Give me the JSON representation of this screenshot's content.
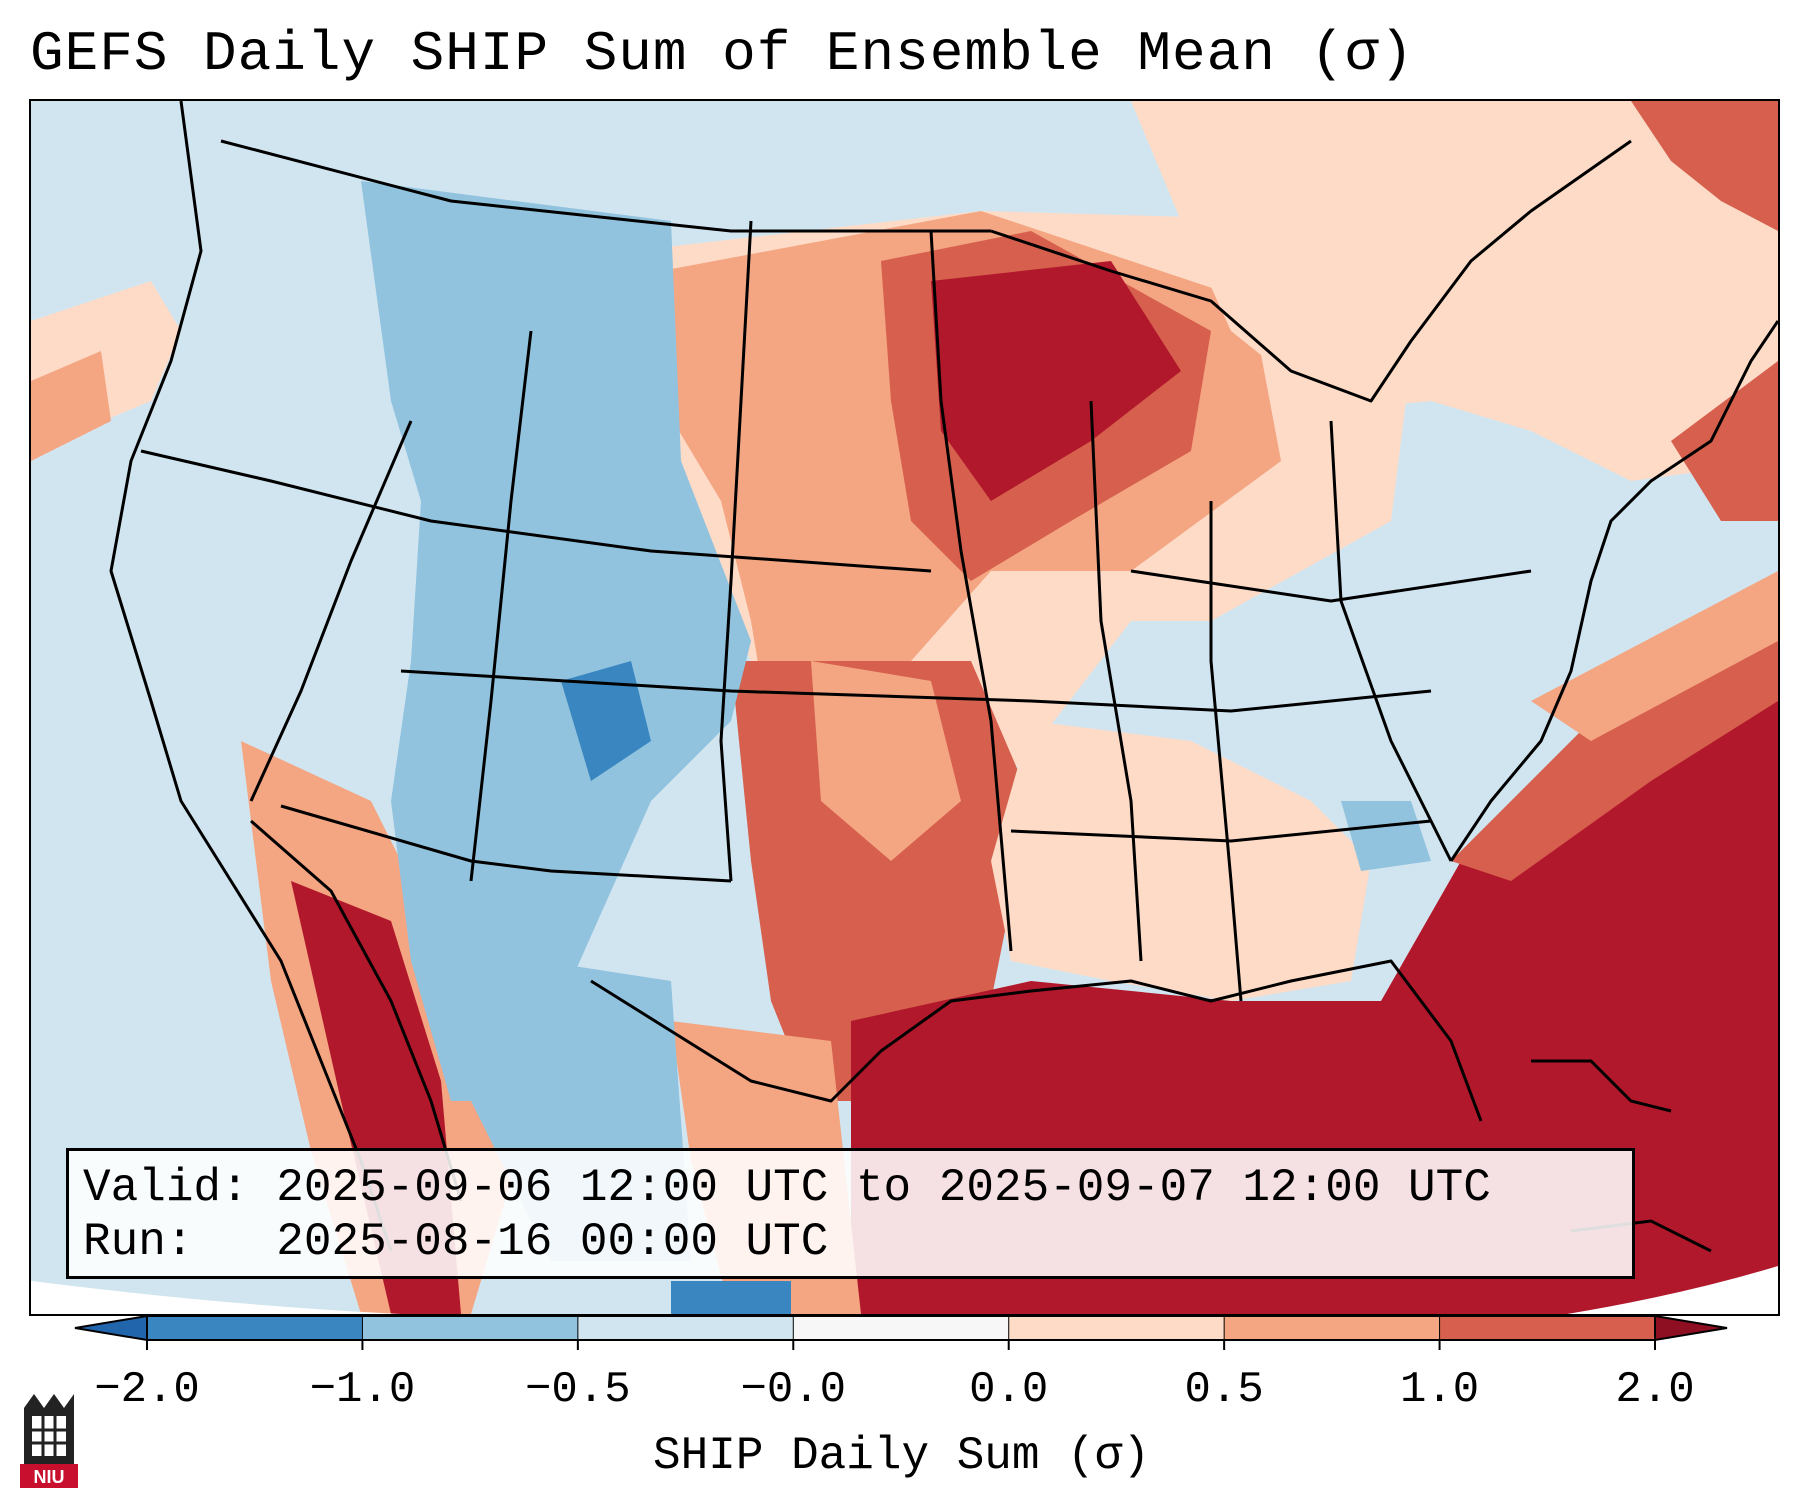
{
  "title": "GEFS Daily SHIP Sum of Ensemble Mean (σ)",
  "info": {
    "valid_label": "Valid:",
    "valid_value": "2025-09-06 12:00 UTC to 2025-09-07 12:00 UTC",
    "run_label": "Run:",
    "run_value": "2025-08-16 00:00 UTC"
  },
  "colorbar": {
    "label": "SHIP Daily Sum (σ)",
    "ticks": [
      "−2.0",
      "−1.0",
      "−0.5",
      "−0.0",
      "0.0",
      "0.5",
      "1.0",
      "2.0"
    ],
    "colors": [
      "#3a86c0",
      "#91c3df",
      "#d1e5f0",
      "#f7f7f7",
      "#fddbc7",
      "#f4a582",
      "#d6604d",
      "#b2182b"
    ],
    "under_color": "#2166ac",
    "over_color": "#8f0f22"
  },
  "map": {
    "projection": "Lambert conformal, CONUS",
    "ocean_color": "#d1e5f0",
    "outside_color": "#ffffff"
  },
  "logo_text": "NIU"
}
